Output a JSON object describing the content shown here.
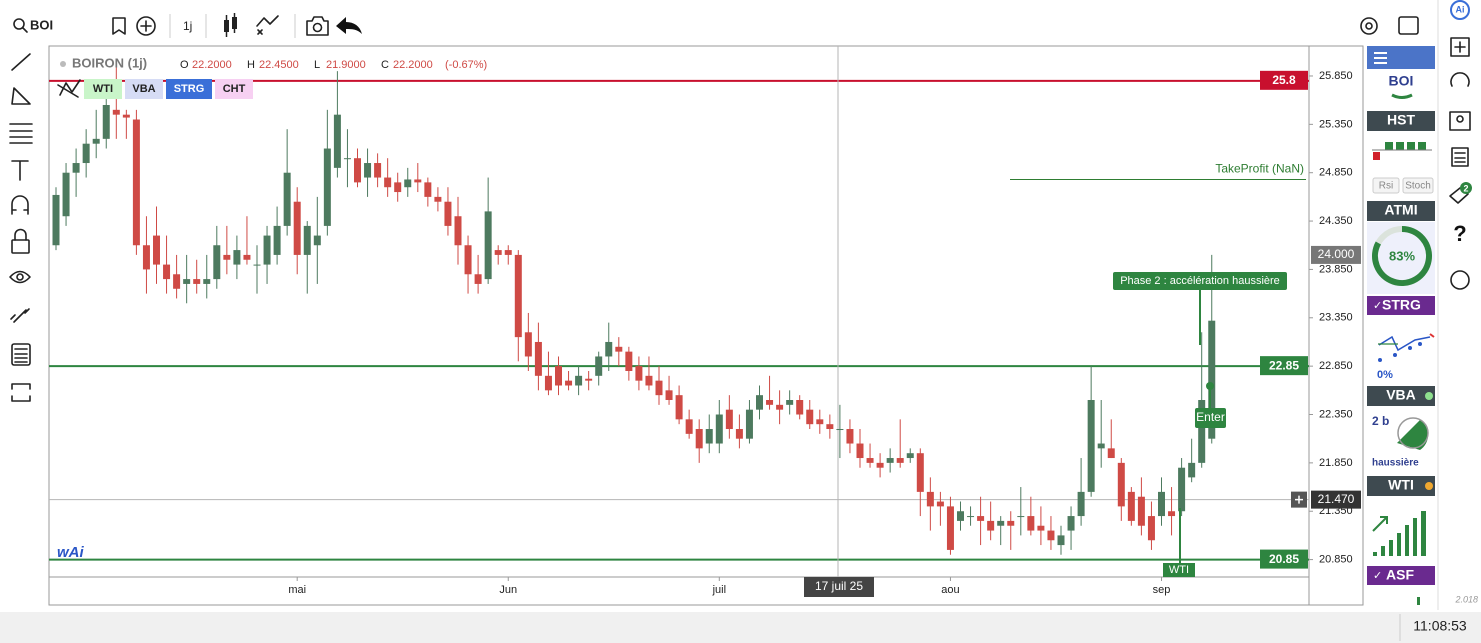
{
  "toolbar": {
    "symbol": "BOI",
    "interval": "1j"
  },
  "chart_data": {
    "type": "candlestick",
    "title": "BOIRON (1j)",
    "quote": [
      {
        "label": "O",
        "value": "22.2000"
      },
      {
        "label": "H",
        "value": "22.4500"
      },
      {
        "label": "L",
        "value": "21.9000"
      },
      {
        "label": "C",
        "value": "22.2000"
      }
    ],
    "change": "(-0.67%)",
    "badges": [
      {
        "name": "WTI",
        "color": "#c9f5c9"
      },
      {
        "name": "VBA",
        "color": "#d6dcf5"
      },
      {
        "name": "STRG",
        "color": "#3a6fd8"
      },
      {
        "name": "CHT",
        "color": "#f7d0f2"
      }
    ],
    "up_color": "#4d7a5f",
    "down_color": "#cf4a45",
    "ylim": [
      20.67,
      26.16
    ],
    "yticks": [
      {
        "value": 25.85,
        "label": "25.850"
      },
      {
        "value": 25.35,
        "label": "25.350"
      },
      {
        "value": 24.85,
        "label": "24.850"
      },
      {
        "value": 24.35,
        "label": "24.350"
      },
      {
        "value": 23.85,
        "label": "23.850"
      },
      {
        "value": 23.35,
        "label": "23.350"
      },
      {
        "value": 22.85,
        "label": "22.850"
      },
      {
        "value": 22.35,
        "label": "22.350"
      },
      {
        "value": 21.85,
        "label": "21.850"
      },
      {
        "value": 21.35,
        "label": "21.350"
      },
      {
        "value": 20.85,
        "label": "20.850"
      }
    ],
    "categories": [
      null,
      null,
      null,
      null,
      null,
      null,
      null,
      null,
      null,
      null,
      null,
      null,
      null,
      null,
      null,
      null,
      null,
      null,
      null,
      null,
      null,
      null,
      null,
      null,
      "mai",
      null,
      null,
      null,
      null,
      null,
      null,
      null,
      null,
      null,
      null,
      null,
      null,
      null,
      null,
      null,
      null,
      null,
      null,
      null,
      null,
      "Jun",
      null,
      null,
      null,
      null,
      null,
      null,
      null,
      null,
      null,
      null,
      null,
      null,
      null,
      null,
      null,
      null,
      null,
      null,
      null,
      null,
      "juil",
      null,
      null,
      null,
      null,
      null,
      null,
      null,
      null,
      null,
      null,
      null,
      null,
      null,
      null,
      null,
      null,
      null,
      null,
      null,
      null,
      null,
      null,
      "aou",
      null,
      null,
      null,
      null,
      null,
      null,
      null,
      null,
      null,
      null,
      null,
      null,
      null,
      null,
      null,
      null,
      null,
      null,
      null,
      null,
      "sep",
      null,
      null,
      null,
      null,
      null
    ],
    "candles": [
      [
        24.1,
        24.7,
        24.05,
        24.62
      ],
      [
        24.4,
        24.95,
        24.3,
        24.85
      ],
      [
        24.85,
        25.1,
        24.6,
        24.95
      ],
      [
        24.95,
        25.3,
        24.8,
        25.15
      ],
      [
        25.15,
        25.5,
        25.0,
        25.2
      ],
      [
        25.2,
        25.7,
        25.1,
        25.55
      ],
      [
        25.5,
        25.95,
        25.2,
        25.45
      ],
      [
        25.45,
        25.5,
        25.2,
        25.42
      ],
      [
        25.4,
        25.5,
        24.0,
        24.1
      ],
      [
        24.1,
        24.4,
        23.6,
        23.85
      ],
      [
        24.2,
        24.5,
        23.7,
        23.9
      ],
      [
        23.9,
        24.2,
        23.6,
        23.75
      ],
      [
        23.8,
        24.0,
        23.55,
        23.65
      ],
      [
        23.7,
        24.0,
        23.5,
        23.75
      ],
      [
        23.75,
        23.95,
        23.6,
        23.7
      ],
      [
        23.7,
        24.0,
        23.55,
        23.75
      ],
      [
        23.75,
        24.3,
        23.65,
        24.1
      ],
      [
        24.0,
        24.3,
        23.8,
        23.95
      ],
      [
        23.9,
        24.2,
        23.75,
        24.05
      ],
      [
        24.0,
        24.4,
        23.9,
        23.95
      ],
      [
        23.9,
        24.1,
        23.6,
        23.9
      ],
      [
        23.9,
        24.3,
        23.7,
        24.2
      ],
      [
        24.0,
        24.5,
        23.9,
        24.3
      ],
      [
        24.3,
        25.3,
        24.2,
        24.85
      ],
      [
        24.55,
        24.7,
        23.8,
        24.0
      ],
      [
        24.0,
        24.35,
        23.6,
        24.3
      ],
      [
        24.1,
        24.6,
        23.7,
        24.2
      ],
      [
        24.3,
        25.5,
        24.2,
        25.1
      ],
      [
        24.9,
        25.9,
        24.8,
        25.45
      ],
      [
        25.0,
        25.3,
        24.7,
        25.0
      ],
      [
        25.0,
        25.1,
        24.7,
        24.75
      ],
      [
        24.8,
        25.1,
        24.6,
        24.95
      ],
      [
        24.95,
        25.05,
        24.7,
        24.8
      ],
      [
        24.8,
        25.0,
        24.6,
        24.7
      ],
      [
        24.75,
        24.85,
        24.55,
        24.65
      ],
      [
        24.7,
        24.9,
        24.6,
        24.78
      ],
      [
        24.78,
        24.95,
        24.65,
        24.75
      ],
      [
        24.75,
        24.8,
        24.5,
        24.6
      ],
      [
        24.6,
        24.7,
        24.45,
        24.55
      ],
      [
        24.55,
        24.7,
        24.2,
        24.3
      ],
      [
        24.4,
        24.6,
        23.9,
        24.1
      ],
      [
        24.1,
        24.2,
        23.6,
        23.8
      ],
      [
        23.8,
        24.0,
        23.6,
        23.7
      ],
      [
        23.75,
        24.8,
        23.7,
        24.45
      ],
      [
        24.05,
        24.1,
        23.9,
        24.0
      ],
      [
        24.05,
        24.1,
        23.9,
        24.0
      ],
      [
        24.0,
        24.05,
        22.9,
        23.15
      ],
      [
        23.2,
        23.4,
        22.8,
        22.95
      ],
      [
        23.1,
        23.3,
        22.6,
        22.75
      ],
      [
        22.75,
        23.0,
        22.55,
        22.6
      ],
      [
        22.85,
        22.95,
        22.55,
        22.65
      ],
      [
        22.7,
        22.8,
        22.6,
        22.65
      ],
      [
        22.65,
        22.85,
        22.55,
        22.75
      ],
      [
        22.72,
        22.8,
        22.6,
        22.7
      ],
      [
        22.75,
        23.0,
        22.65,
        22.95
      ],
      [
        22.95,
        23.3,
        22.8,
        23.1
      ],
      [
        23.05,
        23.15,
        22.85,
        23.0
      ],
      [
        23.0,
        23.05,
        22.7,
        22.8
      ],
      [
        22.85,
        22.95,
        22.6,
        22.7
      ],
      [
        22.75,
        22.95,
        22.6,
        22.65
      ],
      [
        22.7,
        22.85,
        22.45,
        22.55
      ],
      [
        22.6,
        22.75,
        22.45,
        22.5
      ],
      [
        22.55,
        22.65,
        22.25,
        22.3
      ],
      [
        22.3,
        22.4,
        22.1,
        22.15
      ],
      [
        22.2,
        22.3,
        21.85,
        22.0
      ],
      [
        22.05,
        22.35,
        21.95,
        22.2
      ],
      [
        22.05,
        22.5,
        21.95,
        22.35
      ],
      [
        22.4,
        22.55,
        22.1,
        22.2
      ],
      [
        22.2,
        22.35,
        22.0,
        22.1
      ],
      [
        22.1,
        22.5,
        22.05,
        22.4
      ],
      [
        22.4,
        22.65,
        22.3,
        22.55
      ],
      [
        22.5,
        22.75,
        22.4,
        22.45
      ],
      [
        22.45,
        22.6,
        22.25,
        22.4
      ],
      [
        22.45,
        22.6,
        22.35,
        22.5
      ],
      [
        22.5,
        22.55,
        22.3,
        22.35
      ],
      [
        22.4,
        22.5,
        22.2,
        22.25
      ],
      [
        22.3,
        22.4,
        22.15,
        22.25
      ],
      [
        22.25,
        22.35,
        22.1,
        22.2
      ],
      [
        22.2,
        22.45,
        21.9,
        22.2
      ],
      [
        22.2,
        22.3,
        21.95,
        22.05
      ],
      [
        22.05,
        22.2,
        21.8,
        21.9
      ],
      [
        21.9,
        22.05,
        21.8,
        21.85
      ],
      [
        21.85,
        21.95,
        21.7,
        21.8
      ],
      [
        21.85,
        22.0,
        21.75,
        21.9
      ],
      [
        21.9,
        22.3,
        21.8,
        21.85
      ],
      [
        21.9,
        22.0,
        21.85,
        21.95
      ],
      [
        21.95,
        22.0,
        21.3,
        21.55
      ],
      [
        21.55,
        21.7,
        21.15,
        21.4
      ],
      [
        21.45,
        21.55,
        21.2,
        21.4
      ],
      [
        21.4,
        21.5,
        20.9,
        20.95
      ],
      [
        21.25,
        21.45,
        21.15,
        21.35
      ],
      [
        21.3,
        21.4,
        21.2,
        21.3
      ],
      [
        21.3,
        21.5,
        21.0,
        21.25
      ],
      [
        21.25,
        21.45,
        21.05,
        21.15
      ],
      [
        21.2,
        21.3,
        21.0,
        21.25
      ],
      [
        21.25,
        21.35,
        20.95,
        21.2
      ],
      [
        21.3,
        21.6,
        21.1,
        21.3
      ],
      [
        21.3,
        21.5,
        21.1,
        21.15
      ],
      [
        21.2,
        21.4,
        21.0,
        21.15
      ],
      [
        21.15,
        21.3,
        20.95,
        21.05
      ],
      [
        21.0,
        21.2,
        20.9,
        21.1
      ],
      [
        21.15,
        21.4,
        20.95,
        21.3
      ],
      [
        21.3,
        21.9,
        21.2,
        21.55
      ],
      [
        21.55,
        22.85,
        21.5,
        22.5
      ],
      [
        22.0,
        22.5,
        21.8,
        22.05
      ],
      [
        22.0,
        22.3,
        21.9,
        21.9
      ],
      [
        21.85,
        21.9,
        21.25,
        21.4
      ],
      [
        21.55,
        21.6,
        21.2,
        21.25
      ],
      [
        21.5,
        21.7,
        21.1,
        21.2
      ],
      [
        21.3,
        21.45,
        20.95,
        21.05
      ],
      [
        21.3,
        21.7,
        21.2,
        21.55
      ],
      [
        21.35,
        21.6,
        21.1,
        21.3
      ],
      [
        21.35,
        21.9,
        21.3,
        21.8
      ],
      [
        21.7,
        22.1,
        21.65,
        21.85
      ],
      [
        21.85,
        23.2,
        21.8,
        22.5
      ],
      [
        22.1,
        24.0,
        22.05,
        23.32
      ]
    ],
    "levels": [
      {
        "value": 25.8,
        "color": "#c8102e"
      },
      {
        "value": 22.85,
        "color": "#2e8540"
      },
      {
        "value": 20.85,
        "color": "#2e8540"
      }
    ],
    "take_profit": {
      "label": "TakeProfit (NaN)",
      "value": 24.78,
      "color": "#2e7d32"
    },
    "last_price": {
      "value": 24.0,
      "label": "24.000"
    },
    "crosshair": {
      "value": 21.47,
      "label": "21.470",
      "date": "17 juil 25"
    },
    "annotations": {
      "phase": "Phase 2 : accélération haussière",
      "enter": "Enter",
      "wti": "WTI"
    }
  },
  "panel": {
    "symbol": "BOI",
    "hst": "HST",
    "rsi": "Rsi",
    "stoch": "Stoch",
    "atmi": "ATMI",
    "atmi_value": {
      "value": 83,
      "label": "83%"
    },
    "strg": "STRG",
    "strg_value": "0%",
    "vba": "VBA",
    "vba_value": "2 b",
    "vba_trend": "haussière",
    "wti": "WTI",
    "asf": "ASF"
  },
  "sidebar": {
    "badge": "2",
    "version": "2.018"
  },
  "status": {
    "time": "11:08:53"
  }
}
